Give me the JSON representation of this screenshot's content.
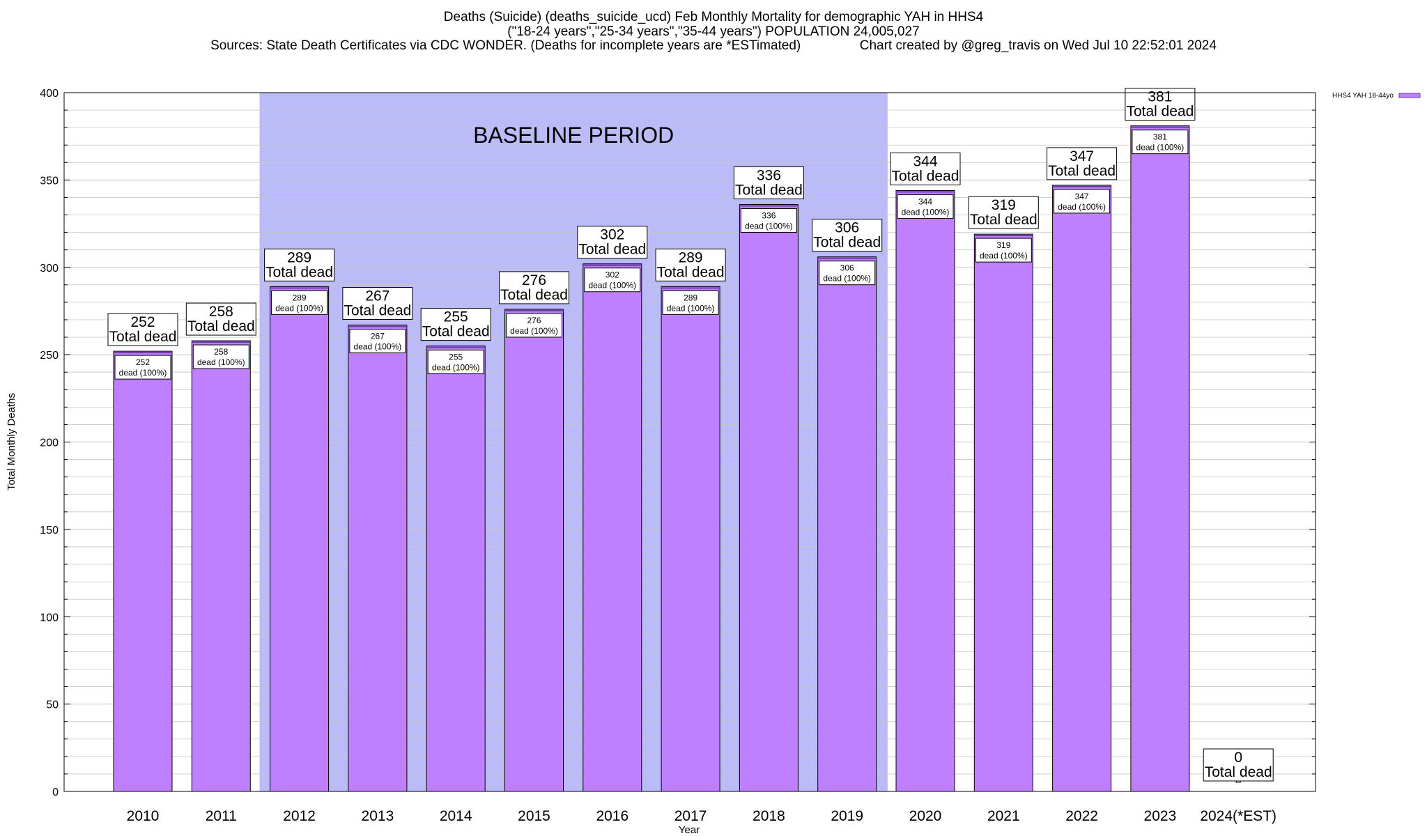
{
  "title": {
    "line1": "Deaths (Suicide) (deaths_suicide_ucd) Feb Monthly Mortality for demographic YAH in HHS4",
    "line2": "(\"18-24 years\",\"25-34 years\",\"35-44 years\") POPULATION 24,005,027",
    "line3": "Sources: State Death Certificates via CDC WONDER. (Deaths for incomplete years are *ESTimated)                Chart created by @greg_travis on Wed Jul 10 22:52:01 2024"
  },
  "colors": {
    "bar_fill": "#bf80ff",
    "bar_stroke": "#000000",
    "bar_top": "#6a3d9a",
    "baseline_fill": "#bbbbf8",
    "grid": "#c8c8c8"
  },
  "chart_data": {
    "type": "bar",
    "xlabel": "Year",
    "ylabel": "Total Monthly Deaths",
    "ylim": [
      0,
      400
    ],
    "yticks": [
      0,
      50,
      100,
      150,
      200,
      250,
      300,
      350,
      400
    ],
    "grid": true,
    "legend_position": "top-right",
    "categories": [
      "2010",
      "2011",
      "2012",
      "2013",
      "2014",
      "2015",
      "2016",
      "2017",
      "2018",
      "2019",
      "2020",
      "2021",
      "2022",
      "2023",
      "2024(*EST)"
    ],
    "series": [
      {
        "name": "HHS4 YAH 18-44yo",
        "values": [
          252,
          258,
          289,
          267,
          255,
          276,
          302,
          289,
          336,
          306,
          344,
          319,
          347,
          381,
          0
        ]
      }
    ],
    "total_label_suffix": "Total dead",
    "inner_label_suffix": "dead (100%)",
    "baseline_period": {
      "label": "BASELINE PERIOD",
      "start": "2012",
      "end": "2019"
    }
  }
}
